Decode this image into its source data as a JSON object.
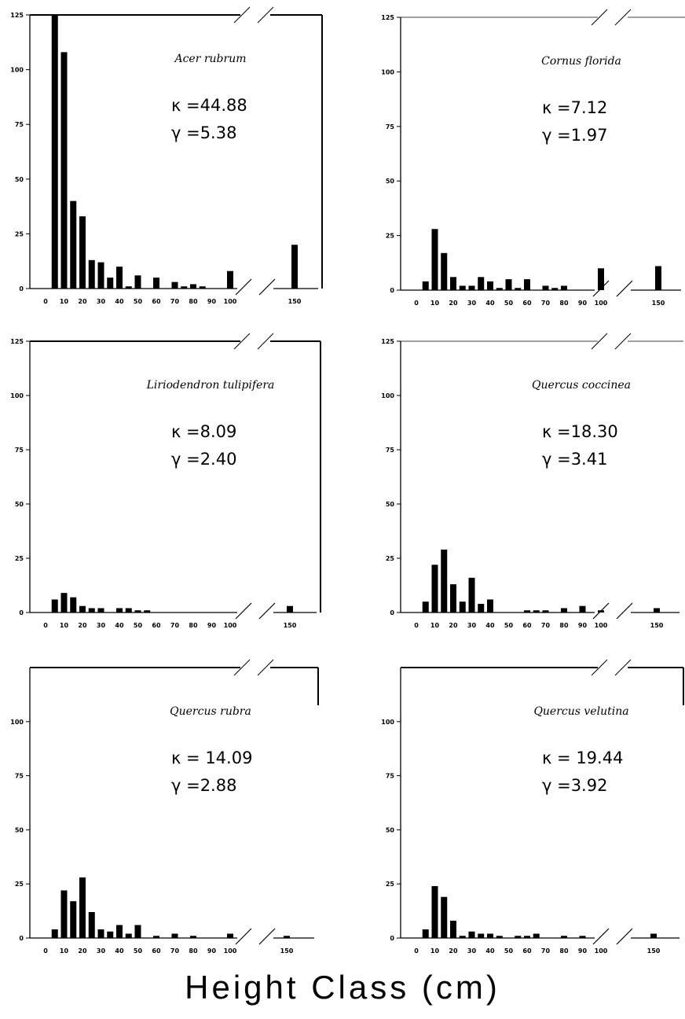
{
  "figure": {
    "x_axis_title": "Height Class (cm)"
  },
  "chart_data": [
    {
      "type": "bar",
      "species": "Acer rubrum",
      "kappa": "=44.88",
      "gamma": "=5.38",
      "kappa_symbol": "κ",
      "gamma_symbol": "γ",
      "x_ticks": [
        "0",
        "10",
        "20",
        "30",
        "40",
        "50",
        "60",
        "70",
        "80",
        "90",
        "100",
        "150"
      ],
      "y_ticks": [
        "0",
        "25",
        "50",
        "75",
        "100",
        "125"
      ],
      "ylim": [
        0,
        125
      ],
      "x": [
        5,
        10,
        15,
        20,
        25,
        30,
        35,
        40,
        45,
        50,
        60,
        70,
        75,
        80,
        85,
        100,
        150
      ],
      "values": [
        125,
        108,
        40,
        33,
        13,
        12,
        5,
        10,
        1,
        6,
        5,
        3,
        1,
        2,
        1,
        8,
        20
      ],
      "axis_break": true
    },
    {
      "type": "bar",
      "species": "Cornus florida",
      "kappa": "=7.12",
      "gamma": "=1.97",
      "kappa_symbol": "κ",
      "gamma_symbol": "γ",
      "x_ticks": [
        "0",
        "10",
        "20",
        "30",
        "40",
        "50",
        "60",
        "70",
        "80",
        "90",
        "100",
        "150"
      ],
      "y_ticks": [
        "0",
        "25",
        "50",
        "75",
        "100",
        "125"
      ],
      "y_tick_75_label": "75",
      "ylim": [
        0,
        125
      ],
      "x": [
        5,
        10,
        15,
        20,
        25,
        30,
        35,
        40,
        45,
        50,
        55,
        60,
        70,
        75,
        80,
        100,
        150
      ],
      "values": [
        4,
        28,
        17,
        6,
        2,
        2,
        6,
        4,
        1,
        5,
        1,
        5,
        2,
        1,
        2,
        10,
        11
      ],
      "axis_break": true
    },
    {
      "type": "bar",
      "species": "Liriodendron tulipifera",
      "kappa": "=8.09",
      "gamma": "=2.40",
      "kappa_symbol": "κ",
      "gamma_symbol": "γ",
      "x_ticks": [
        "0",
        "10",
        "20",
        "30",
        "40",
        "50",
        "60",
        "70",
        "80",
        "90",
        "100",
        "150"
      ],
      "y_ticks": [
        "0",
        "25",
        "50",
        "75",
        "100",
        "125"
      ],
      "ylim": [
        0,
        125
      ],
      "x": [
        5,
        10,
        15,
        20,
        25,
        30,
        40,
        45,
        50,
        55,
        150
      ],
      "values": [
        6,
        9,
        7,
        3,
        2,
        2,
        2,
        2,
        1,
        1,
        3
      ],
      "axis_break": true
    },
    {
      "type": "bar",
      "species": "Quercus coccinea",
      "kappa": "=18.30",
      "gamma": "=3.41",
      "kappa_symbol": "κ",
      "gamma_symbol": "γ",
      "x_ticks": [
        "0",
        "10",
        "20",
        "30",
        "40",
        "50",
        "60",
        "70",
        "80",
        "90",
        "100",
        "150"
      ],
      "y_ticks": [
        "0",
        "25",
        "50",
        "75",
        "100",
        "125"
      ],
      "ylim": [
        0,
        125
      ],
      "x": [
        5,
        10,
        15,
        20,
        25,
        30,
        35,
        40,
        60,
        65,
        70,
        80,
        90,
        100,
        150
      ],
      "values": [
        5,
        22,
        29,
        13,
        5,
        16,
        4,
        6,
        1,
        1,
        1,
        2,
        3,
        1,
        2
      ],
      "axis_break": true
    },
    {
      "type": "bar",
      "species": "Quercus rubra",
      "kappa": "= 14.09",
      "gamma": "=2.88",
      "kappa_symbol": "κ",
      "gamma_symbol": "γ",
      "x_ticks": [
        "0",
        "10",
        "20",
        "30",
        "40",
        "50",
        "60",
        "70",
        "80",
        "90",
        "100",
        "150"
      ],
      "y_ticks": [
        "0",
        "25",
        "50",
        "75",
        "100"
      ],
      "ylim": [
        0,
        125
      ],
      "x": [
        5,
        10,
        15,
        20,
        25,
        30,
        35,
        40,
        45,
        50,
        60,
        70,
        80,
        100,
        150
      ],
      "values": [
        4,
        22,
        17,
        28,
        12,
        4,
        3,
        6,
        2,
        6,
        1,
        2,
        1,
        2,
        1
      ],
      "axis_break": true
    },
    {
      "type": "bar",
      "species": "Quercus velutina",
      "kappa": "=  19.44",
      "gamma": "=3.92",
      "kappa_symbol": "κ",
      "gamma_symbol": "γ",
      "x_ticks": [
        "0",
        "10",
        "20",
        "30",
        "40",
        "50",
        "60",
        "70",
        "80",
        "90",
        "100",
        "150"
      ],
      "y_ticks": [
        "0",
        "25",
        "50",
        "75",
        "100"
      ],
      "ylim": [
        0,
        125
      ],
      "x": [
        5,
        10,
        15,
        20,
        25,
        30,
        35,
        40,
        45,
        55,
        60,
        65,
        80,
        90,
        150
      ],
      "values": [
        4,
        24,
        19,
        8,
        1,
        3,
        2,
        2,
        1,
        1,
        1,
        2,
        1,
        1,
        2
      ],
      "axis_break": true
    }
  ]
}
